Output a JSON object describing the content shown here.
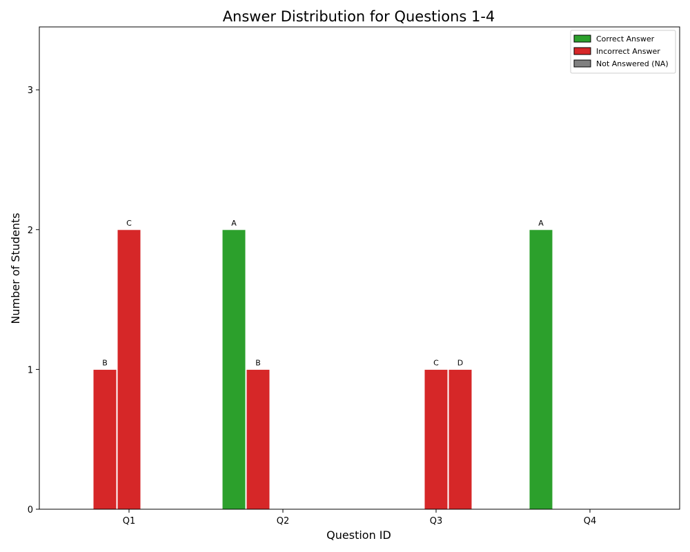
{
  "chart_data": {
    "type": "bar",
    "title": "Answer Distribution for Questions 1-4",
    "xlabel": "Question ID",
    "ylabel": "Number of Students",
    "categories": [
      "Q1",
      "Q2",
      "Q3",
      "Q4"
    ],
    "ylim": [
      0,
      3.45
    ],
    "yticks": [
      0,
      1,
      2,
      3
    ],
    "grid": false,
    "legend_position": "top-right",
    "legend": [
      {
        "label": "Correct Answer",
        "color": "#2ca02c"
      },
      {
        "label": "Incorrect Answer",
        "color": "#d62728"
      },
      {
        "label": "Not Answered (NA)",
        "color": "#808080"
      }
    ],
    "bars": [
      {
        "category": "Q1",
        "answer": "B",
        "value": 1,
        "status": "incorrect"
      },
      {
        "category": "Q1",
        "answer": "C",
        "value": 2,
        "status": "incorrect"
      },
      {
        "category": "Q2",
        "answer": "A",
        "value": 2,
        "status": "correct"
      },
      {
        "category": "Q2",
        "answer": "B",
        "value": 1,
        "status": "incorrect"
      },
      {
        "category": "Q3",
        "answer": "C",
        "value": 1,
        "status": "incorrect"
      },
      {
        "category": "Q3",
        "answer": "D",
        "value": 1,
        "status": "incorrect"
      },
      {
        "category": "Q4",
        "answer": "A",
        "value": 2,
        "status": "correct"
      }
    ],
    "colors": {
      "correct": "#2ca02c",
      "incorrect": "#d62728",
      "na": "#808080"
    }
  }
}
